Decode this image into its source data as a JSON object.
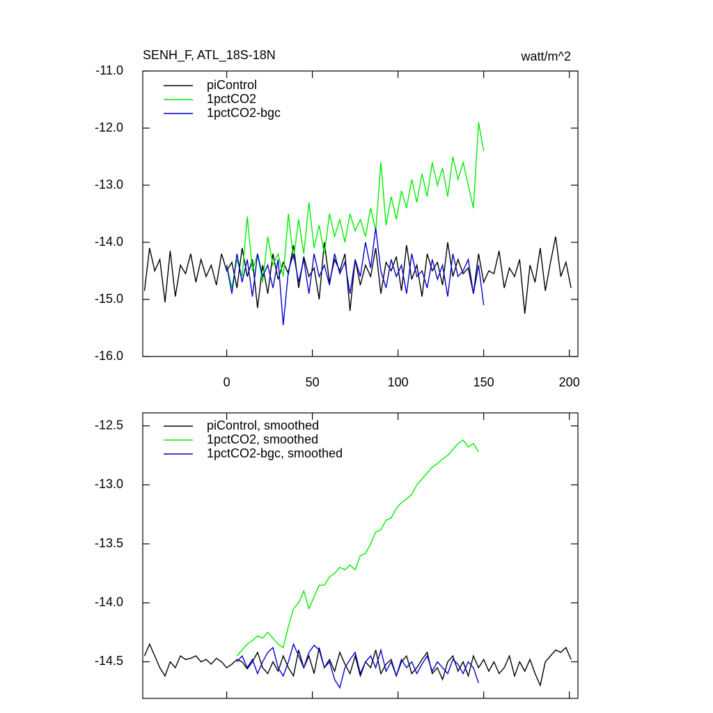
{
  "chart_data": [
    {
      "type": "line",
      "title": "SENH_F, ATL_18S-18N",
      "units": "watt/m^2",
      "xlim": [
        -49,
        205
      ],
      "xticks": [
        0,
        50,
        100,
        150,
        200
      ],
      "ylim": [
        -16,
        -11
      ],
      "yticks": [
        {
          "value": -11,
          "label": "-11.0"
        },
        {
          "value": -12,
          "label": "-12.0"
        },
        {
          "value": -13,
          "label": "-13.0"
        },
        {
          "value": -14,
          "label": "-14.0"
        },
        {
          "value": -15,
          "label": "-15.0"
        },
        {
          "value": -16,
          "label": "-16.0"
        }
      ],
      "legend": "upper left",
      "series": [
        {
          "name": "piControl",
          "color": "#000000",
          "x": [
            -48,
            -45,
            -42,
            -39,
            -36,
            -33,
            -30,
            -27,
            -24,
            -21,
            -18,
            -15,
            -12,
            -9,
            -6,
            -3,
            0,
            3,
            6,
            9,
            12,
            15,
            18,
            21,
            24,
            27,
            30,
            33,
            36,
            39,
            42,
            45,
            48,
            51,
            54,
            57,
            60,
            63,
            66,
            69,
            72,
            75,
            78,
            81,
            84,
            87,
            90,
            93,
            96,
            99,
            102,
            105,
            108,
            111,
            114,
            117,
            120,
            123,
            126,
            129,
            132,
            135,
            138,
            141,
            144,
            147,
            150,
            153,
            156,
            159,
            162,
            165,
            168,
            171,
            174,
            177,
            180,
            183,
            186,
            189,
            192,
            195,
            198,
            201
          ],
          "values": [
            -14.85,
            -14.1,
            -14.5,
            -14.3,
            -15.05,
            -14.15,
            -14.95,
            -14.4,
            -14.55,
            -14.2,
            -14.7,
            -14.3,
            -14.6,
            -14.4,
            -14.75,
            -14.2,
            -14.5,
            -14.35,
            -14.8,
            -14.1,
            -14.6,
            -14.3,
            -15.15,
            -14.4,
            -14.9,
            -14.2,
            -14.65,
            -14.35,
            -14.55,
            -14.05,
            -14.8,
            -14.25,
            -14.6,
            -14.45,
            -15.0,
            -14.0,
            -14.7,
            -14.3,
            -14.5,
            -14.2,
            -15.2,
            -14.3,
            -14.75,
            -14.4,
            -14.6,
            -14.1,
            -14.9,
            -14.35,
            -14.5,
            -14.25,
            -14.85,
            -14.05,
            -14.65,
            -14.4,
            -14.95,
            -14.2,
            -14.5,
            -14.35,
            -14.75,
            -14.0,
            -14.6,
            -14.3,
            -14.55,
            -14.45,
            -14.9,
            -14.2,
            -14.7,
            -14.5,
            -14.55,
            -14.15,
            -14.8,
            -14.45,
            -14.6,
            -14.3,
            -15.25,
            -14.4,
            -14.7,
            -14.1,
            -14.85,
            -14.35,
            -13.9,
            -14.6,
            -14.35,
            -14.8
          ]
        },
        {
          "name": "1pctCO2",
          "color": "#00ee00",
          "x": [
            0,
            3,
            6,
            9,
            12,
            15,
            18,
            21,
            24,
            27,
            30,
            33,
            36,
            39,
            42,
            45,
            48,
            51,
            54,
            57,
            60,
            63,
            66,
            69,
            72,
            75,
            78,
            81,
            84,
            87,
            90,
            93,
            96,
            99,
            102,
            105,
            108,
            111,
            114,
            117,
            120,
            123,
            126,
            129,
            132,
            135,
            138,
            141,
            144,
            147,
            150
          ],
          "values": [
            -14.4,
            -14.8,
            -14.3,
            -14.6,
            -13.55,
            -14.5,
            -14.2,
            -14.7,
            -13.9,
            -14.4,
            -14.2,
            -14.6,
            -13.5,
            -14.3,
            -13.6,
            -14.2,
            -13.3,
            -14.1,
            -13.7,
            -14.2,
            -13.5,
            -13.9,
            -13.6,
            -14.0,
            -13.5,
            -13.8,
            -13.6,
            -13.9,
            -13.4,
            -13.8,
            -12.6,
            -13.7,
            -13.2,
            -13.6,
            -13.1,
            -13.4,
            -12.9,
            -13.3,
            -12.8,
            -13.2,
            -12.6,
            -13.0,
            -12.7,
            -13.2,
            -12.5,
            -12.9,
            -12.6,
            -13.0,
            -13.4,
            -11.9,
            -12.4
          ]
        },
        {
          "name": "1pctCO2-bgc",
          "color": "#0000cc",
          "x": [
            0,
            3,
            6,
            9,
            12,
            15,
            18,
            21,
            24,
            27,
            30,
            33,
            36,
            39,
            42,
            45,
            48,
            51,
            54,
            57,
            60,
            63,
            66,
            69,
            72,
            75,
            78,
            81,
            84,
            87,
            90,
            93,
            96,
            99,
            102,
            105,
            108,
            111,
            114,
            117,
            120,
            123,
            126,
            129,
            132,
            135,
            138,
            141,
            144,
            147,
            150
          ],
          "values": [
            -14.4,
            -14.9,
            -14.2,
            -14.7,
            -14.3,
            -14.95,
            -14.2,
            -14.6,
            -14.4,
            -14.8,
            -14.3,
            -15.45,
            -14.5,
            -14.2,
            -14.7,
            -14.3,
            -14.9,
            -14.2,
            -14.6,
            -14.4,
            -14.75,
            -14.2,
            -14.55,
            -14.35,
            -14.9,
            -14.3,
            -14.6,
            -14.0,
            -14.45,
            -13.75,
            -14.5,
            -14.8,
            -14.3,
            -14.6,
            -14.4,
            -14.9,
            -14.2,
            -14.6,
            -14.5,
            -14.8,
            -14.3,
            -14.65,
            -14.4,
            -14.95,
            -14.2,
            -14.6,
            -14.5,
            -14.3,
            -14.9,
            -14.4,
            -15.1
          ]
        }
      ]
    },
    {
      "type": "line",
      "xlim": [
        -49,
        205
      ],
      "xticks": [
        0,
        50,
        100,
        150,
        200
      ],
      "ylim": [
        -14.81,
        -12.39
      ],
      "yticks": [
        -12.5,
        {
          "value": -13,
          "label": "-13.0"
        },
        -13.5,
        {
          "value": -14,
          "label": "-14.0"
        },
        -14.5
      ],
      "legend": "upper left",
      "series": [
        {
          "name": "piControl, smoothed",
          "color": "#000000",
          "x": [
            -48,
            -45,
            -42,
            -39,
            -36,
            -33,
            -30,
            -27,
            -24,
            -21,
            -18,
            -15,
            -12,
            -9,
            -6,
            -3,
            0,
            3,
            6,
            9,
            12,
            15,
            18,
            21,
            24,
            27,
            30,
            33,
            36,
            39,
            42,
            45,
            48,
            51,
            54,
            57,
            60,
            63,
            66,
            69,
            72,
            75,
            78,
            81,
            84,
            87,
            90,
            93,
            96,
            99,
            102,
            105,
            108,
            111,
            114,
            117,
            120,
            123,
            126,
            129,
            132,
            135,
            138,
            141,
            144,
            147,
            150,
            153,
            156,
            159,
            162,
            165,
            168,
            171,
            174,
            177,
            180,
            183,
            186,
            189,
            192,
            195,
            198,
            201
          ],
          "values": [
            -14.45,
            -14.35,
            -14.45,
            -14.55,
            -14.62,
            -14.5,
            -14.55,
            -14.45,
            -14.48,
            -14.47,
            -14.45,
            -14.5,
            -14.48,
            -14.52,
            -14.47,
            -14.5,
            -14.55,
            -14.52,
            -14.48,
            -14.5,
            -14.56,
            -14.5,
            -14.42,
            -14.55,
            -14.6,
            -14.5,
            -14.58,
            -14.45,
            -14.55,
            -14.62,
            -14.4,
            -14.55,
            -14.45,
            -14.6,
            -14.38,
            -14.55,
            -14.48,
            -14.58,
            -14.42,
            -14.52,
            -14.6,
            -14.45,
            -14.62,
            -14.5,
            -14.55,
            -14.4,
            -14.6,
            -14.52,
            -14.48,
            -14.62,
            -14.5,
            -14.45,
            -14.6,
            -14.55,
            -14.48,
            -14.42,
            -14.6,
            -14.55,
            -14.65,
            -14.5,
            -14.45,
            -14.58,
            -14.5,
            -14.62,
            -14.45,
            -14.55,
            -14.48,
            -14.58,
            -14.5,
            -14.6,
            -14.55,
            -14.45,
            -14.62,
            -14.5,
            -14.58,
            -14.48,
            -14.6,
            -14.7,
            -14.5,
            -14.45,
            -14.4,
            -14.42,
            -14.38,
            -14.48
          ]
        },
        {
          "name": "1pctCO2, smoothed",
          "color": "#00ee00",
          "x": [
            6,
            9,
            12,
            15,
            18,
            21,
            24,
            27,
            30,
            33,
            36,
            39,
            42,
            45,
            48,
            51,
            54,
            57,
            60,
            63,
            66,
            69,
            72,
            75,
            78,
            81,
            84,
            87,
            90,
            93,
            96,
            99,
            102,
            105,
            108,
            111,
            114,
            117,
            120,
            123,
            126,
            129,
            132,
            135,
            138,
            141,
            144,
            147
          ],
          "values": [
            -14.45,
            -14.4,
            -14.35,
            -14.32,
            -14.28,
            -14.3,
            -14.25,
            -14.3,
            -14.35,
            -14.38,
            -14.2,
            -14.05,
            -14.0,
            -13.9,
            -14.05,
            -13.95,
            -13.85,
            -13.85,
            -13.78,
            -13.75,
            -13.7,
            -13.72,
            -13.68,
            -13.72,
            -13.6,
            -13.58,
            -13.5,
            -13.4,
            -13.38,
            -13.3,
            -13.28,
            -13.2,
            -13.15,
            -13.12,
            -13.08,
            -13.0,
            -12.95,
            -12.9,
            -12.85,
            -12.82,
            -12.78,
            -12.75,
            -12.7,
            -12.65,
            -12.62,
            -12.68,
            -12.65,
            -12.72
          ]
        },
        {
          "name": "1pctCO2-bgc, smoothed",
          "color": "#0000cc",
          "x": [
            6,
            9,
            12,
            15,
            18,
            21,
            24,
            27,
            30,
            33,
            36,
            39,
            42,
            45,
            48,
            51,
            54,
            57,
            60,
            63,
            66,
            69,
            72,
            75,
            78,
            81,
            84,
            87,
            90,
            93,
            96,
            99,
            102,
            105,
            108,
            111,
            114,
            117,
            120,
            123,
            126,
            129,
            132,
            135,
            138,
            141,
            144,
            147
          ],
          "values": [
            -14.5,
            -14.45,
            -14.55,
            -14.48,
            -14.6,
            -14.5,
            -14.42,
            -14.38,
            -14.55,
            -14.62,
            -14.5,
            -14.35,
            -14.45,
            -14.55,
            -14.42,
            -14.36,
            -14.4,
            -14.55,
            -14.5,
            -14.65,
            -14.72,
            -14.55,
            -14.48,
            -14.42,
            -14.6,
            -14.5,
            -14.45,
            -14.55,
            -14.4,
            -14.58,
            -14.5,
            -14.62,
            -14.48,
            -14.55,
            -14.5,
            -14.6,
            -14.52,
            -14.45,
            -14.58,
            -14.5,
            -14.55,
            -14.6,
            -14.48,
            -14.52,
            -14.6,
            -14.5,
            -14.55,
            -14.68
          ]
        }
      ]
    }
  ]
}
